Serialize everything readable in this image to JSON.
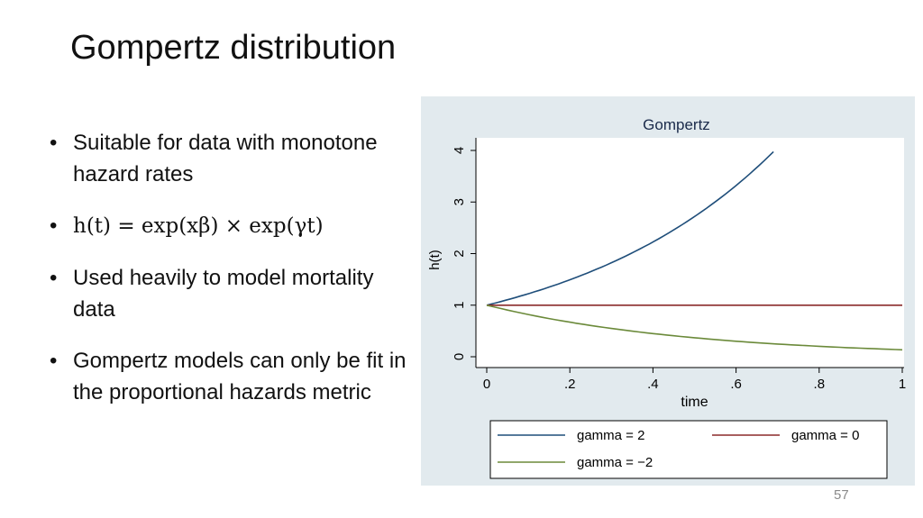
{
  "slide": {
    "title": "Gompertz distribution",
    "bullets": [
      "Suitable for data with monotone hazard rates",
      "h(t) = exp(xβ) × exp(γt)",
      "Used heavily to model mortality data",
      "Gompertz models can only be fit in the proportional hazards metric"
    ],
    "bullet_char": "•",
    "page_number": "57"
  },
  "chart_data": {
    "type": "line",
    "title": "Gompertz",
    "xlabel": "time",
    "ylabel": "h(t)",
    "xlim": [
      0,
      1
    ],
    "ylim": [
      0,
      4
    ],
    "xticks": [
      0,
      0.2,
      0.4,
      0.6,
      0.8,
      1
    ],
    "xtick_labels": [
      "0",
      ".2",
      ".4",
      ".6",
      ".8",
      "1"
    ],
    "yticks": [
      0,
      1,
      2,
      3,
      4
    ],
    "ytick_labels": [
      "0",
      "1",
      "2",
      "3",
      "4"
    ],
    "grid": false,
    "legend_position": "bottom",
    "colors": {
      "outer_background": "#e2eaee",
      "plot_background": "#ffffff",
      "legend_background": "#ffffff"
    },
    "series": [
      {
        "name": "gamma = 2",
        "color": "#1f4e7a",
        "x": [
          0,
          0.05,
          0.1,
          0.15,
          0.2,
          0.25,
          0.3,
          0.35,
          0.4,
          0.45,
          0.5,
          0.55,
          0.6,
          0.65,
          0.69
        ],
        "y": [
          1.0,
          1.11,
          1.22,
          1.35,
          1.49,
          1.65,
          1.82,
          2.01,
          2.23,
          2.46,
          2.72,
          3.0,
          3.32,
          3.67,
          3.97
        ]
      },
      {
        "name": "gamma = 0",
        "color": "#8b2a2a",
        "x": [
          0,
          1
        ],
        "y": [
          1.0,
          1.0
        ]
      },
      {
        "name": "gamma = −2",
        "color": "#6b8a3a",
        "x": [
          0,
          0.1,
          0.2,
          0.3,
          0.4,
          0.5,
          0.6,
          0.7,
          0.8,
          0.9,
          1.0
        ],
        "y": [
          1.0,
          0.82,
          0.67,
          0.55,
          0.45,
          0.37,
          0.3,
          0.25,
          0.2,
          0.17,
          0.14
        ]
      }
    ]
  }
}
